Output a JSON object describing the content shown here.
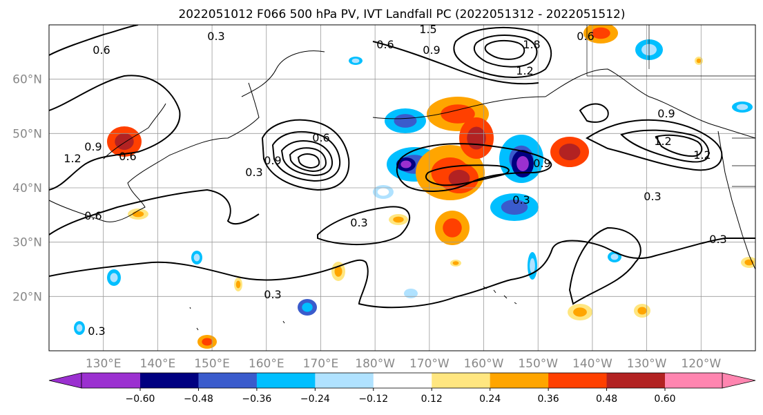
{
  "title": "2022051012 F066 500 hPa PV, IVT Landfall PC (2022051312 - 2022051512)",
  "map": {
    "lon_range": [
      120,
      250
    ],
    "lat_range": [
      10,
      70
    ],
    "lon_ticks": [
      "130°E",
      "140°E",
      "150°E",
      "160°E",
      "170°E",
      "180°W",
      "170°W",
      "160°W",
      "150°W",
      "140°W",
      "130°W",
      "120°W"
    ],
    "lat_ticks": [
      "20°N",
      "30°N",
      "40°N",
      "50°N",
      "60°N"
    ],
    "grid": true
  },
  "colorbar": {
    "ticks": [
      "−0.60",
      "−0.48",
      "−0.36",
      "−0.24",
      "−0.12",
      "0.12",
      "0.24",
      "0.36",
      "0.48",
      "0.60"
    ],
    "colors": [
      "#9b30d0",
      "#000080",
      "#3a5bcc",
      "#00bfff",
      "#b0e2ff",
      "#ffffff",
      "#ffe680",
      "#ffa500",
      "#ff4000",
      "#b22222",
      "#ff85b0"
    ],
    "extend": "both"
  },
  "contour_labels": [
    "0.3",
    "0.6",
    "0.9",
    "1.2",
    "1.5",
    "1.8"
  ]
}
